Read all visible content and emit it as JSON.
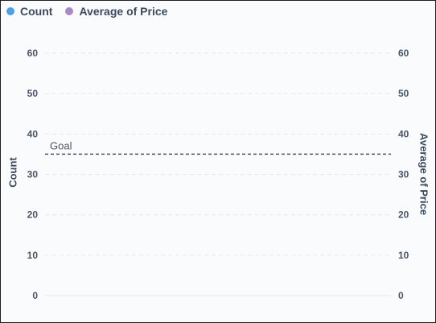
{
  "chart_data": {
    "type": "line",
    "series": [
      {
        "name": "Count",
        "axis": "left",
        "color": "#509ee3",
        "values": []
      },
      {
        "name": "Average of Price",
        "axis": "right",
        "color": "#a989c5",
        "values": []
      }
    ],
    "title": "",
    "ylabel_left": "Count",
    "ylabel_right": "Average of Price",
    "ylim_left": [
      0,
      60
    ],
    "ylim_right": [
      0,
      60
    ],
    "yticks_left": [
      "0",
      "10",
      "20",
      "30",
      "40",
      "50",
      "60"
    ],
    "yticks_right": [
      "0",
      "10",
      "20",
      "30",
      "40",
      "50",
      "60"
    ],
    "goal": {
      "label": "Goal",
      "value": 35
    },
    "grid": true,
    "legend_position": "top-left",
    "colors": {
      "grid": "#e6eaef",
      "goal_line": "#4b5563",
      "axis_text": "#4a5668"
    }
  }
}
